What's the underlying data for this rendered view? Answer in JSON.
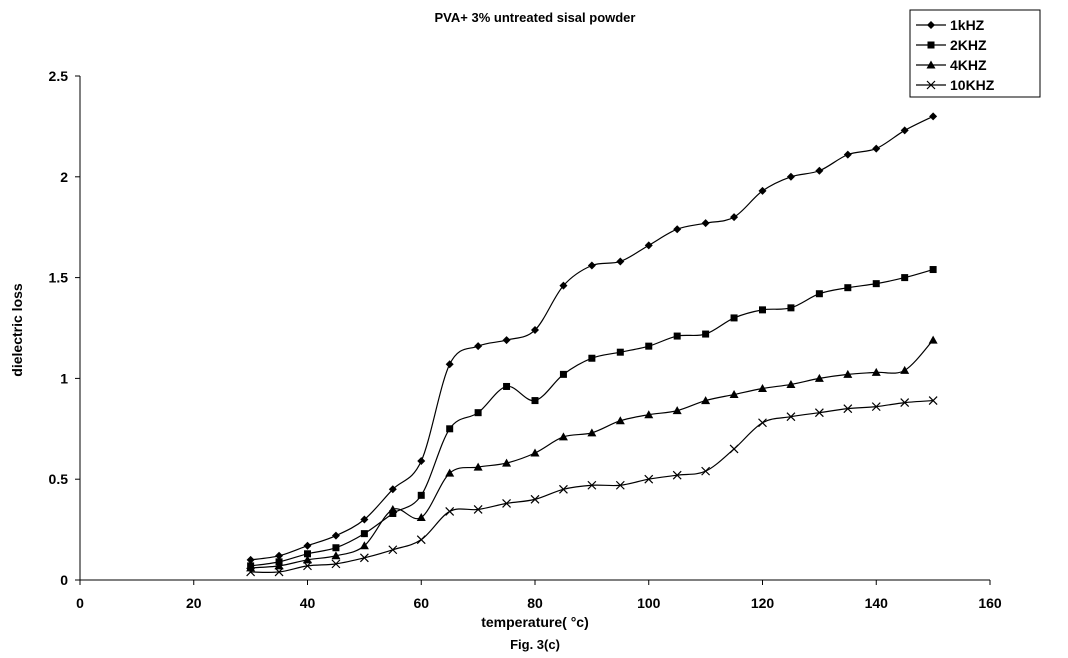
{
  "caption": "Fig. 3(c)",
  "chart_data": {
    "type": "line",
    "title": "PVA+ 3% untreated sisal powder",
    "xlabel": "temperature( °c)",
    "ylabel": "dielectric loss",
    "xlim": [
      0,
      160
    ],
    "ylim": [
      0,
      2.5
    ],
    "x_ticks": [
      "0",
      "20",
      "40",
      "60",
      "80",
      "100",
      "120",
      "140",
      "160"
    ],
    "y_ticks": [
      "0",
      "0.5",
      "1",
      "1.5",
      "2",
      "2.5"
    ],
    "grid": false,
    "legend_position": "top-right",
    "x": [
      30,
      35,
      40,
      45,
      50,
      55,
      60,
      65,
      70,
      75,
      80,
      85,
      90,
      95,
      100,
      105,
      110,
      115,
      120,
      125,
      130,
      135,
      140,
      145,
      150
    ],
    "series": [
      {
        "name": "1kHZ",
        "marker": "diamond",
        "color": "#000000",
        "values": [
          0.1,
          0.12,
          0.17,
          0.22,
          0.3,
          0.45,
          0.59,
          1.07,
          1.16,
          1.19,
          1.24,
          1.46,
          1.56,
          1.58,
          1.66,
          1.74,
          1.77,
          1.8,
          1.93,
          2.0,
          2.03,
          2.11,
          2.14,
          2.23,
          2.3
        ]
      },
      {
        "name": "2KHZ",
        "marker": "square",
        "color": "#000000",
        "values": [
          0.07,
          0.09,
          0.13,
          0.16,
          0.23,
          0.33,
          0.42,
          0.75,
          0.83,
          0.96,
          0.89,
          1.02,
          1.1,
          1.13,
          1.16,
          1.21,
          1.22,
          1.3,
          1.34,
          1.35,
          1.42,
          1.45,
          1.47,
          1.5,
          1.54
        ]
      },
      {
        "name": "4KHZ",
        "marker": "triangle",
        "color": "#000000",
        "values": [
          0.06,
          0.07,
          0.1,
          0.12,
          0.17,
          0.35,
          0.31,
          0.53,
          0.56,
          0.58,
          0.63,
          0.71,
          0.73,
          0.79,
          0.82,
          0.84,
          0.89,
          0.92,
          0.95,
          0.97,
          1.0,
          1.02,
          1.03,
          1.04,
          1.19
        ]
      },
      {
        "name": "10KHZ",
        "marker": "x",
        "color": "#000000",
        "values": [
          0.04,
          0.04,
          0.07,
          0.08,
          0.11,
          0.15,
          0.2,
          0.34,
          0.35,
          0.38,
          0.4,
          0.45,
          0.47,
          0.47,
          0.5,
          0.52,
          0.54,
          0.65,
          0.78,
          0.81,
          0.83,
          0.85,
          0.86,
          0.88,
          0.89
        ]
      }
    ]
  }
}
